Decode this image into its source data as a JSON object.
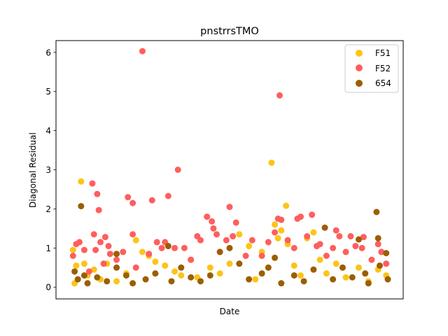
{
  "chart_data": {
    "type": "scatter",
    "title": "pnstrrsTMO",
    "xlabel": "Date",
    "ylabel": "Diagonal Residual",
    "ylim": [
      -0.3,
      6.3
    ],
    "yticks": [
      0,
      1,
      2,
      3,
      4,
      5,
      6
    ],
    "xticks": [],
    "grid": false,
    "legend_position": "top-right",
    "series": [
      {
        "name": "F51",
        "color": "#fcc417",
        "points": [
          [
            0.015,
            0.95
          ],
          [
            0.02,
            0.1
          ],
          [
            0.025,
            0.55
          ],
          [
            0.04,
            2.7
          ],
          [
            0.05,
            0.6
          ],
          [
            0.06,
            0.3
          ],
          [
            0.08,
            0.45
          ],
          [
            0.1,
            0.2
          ],
          [
            0.12,
            0.6
          ],
          [
            0.15,
            0.15
          ],
          [
            0.18,
            0.35
          ],
          [
            0.21,
            1.2
          ],
          [
            0.23,
            0.9
          ],
          [
            0.25,
            0.8
          ],
          [
            0.27,
            0.65
          ],
          [
            0.3,
            0.55
          ],
          [
            0.33,
            0.4
          ],
          [
            0.35,
            0.3
          ],
          [
            0.38,
            0.7
          ],
          [
            0.4,
            0.25
          ],
          [
            0.44,
            0.5
          ],
          [
            0.47,
            0.35
          ],
          [
            0.5,
            0.6
          ],
          [
            0.53,
            1.35
          ],
          [
            0.56,
            1.05
          ],
          [
            0.58,
            0.2
          ],
          [
            0.6,
            0.9
          ],
          [
            0.63,
            3.18
          ],
          [
            0.64,
            1.6
          ],
          [
            0.65,
            1.25
          ],
          [
            0.66,
            1.45
          ],
          [
            0.675,
            2.08
          ],
          [
            0.68,
            1.1
          ],
          [
            0.7,
            0.55
          ],
          [
            0.72,
            0.3
          ],
          [
            0.74,
            1.25
          ],
          [
            0.76,
            1.4
          ],
          [
            0.78,
            0.7
          ],
          [
            0.8,
            0.35
          ],
          [
            0.83,
            0.6
          ],
          [
            0.86,
            0.25
          ],
          [
            0.9,
            0.5
          ],
          [
            0.93,
            0.15
          ],
          [
            0.96,
            0.45
          ],
          [
            0.985,
            0.3
          ]
        ]
      },
      {
        "name": "F52",
        "color": "#ff5e5e",
        "points": [
          [
            0.015,
            0.8
          ],
          [
            0.025,
            1.1
          ],
          [
            0.035,
            1.15
          ],
          [
            0.05,
            0.95
          ],
          [
            0.065,
            0.4
          ],
          [
            0.075,
            2.65
          ],
          [
            0.08,
            1.35
          ],
          [
            0.085,
            0.95
          ],
          [
            0.09,
            2.38
          ],
          [
            0.095,
            1.97
          ],
          [
            0.1,
            1.15
          ],
          [
            0.11,
            0.6
          ],
          [
            0.115,
            1.28
          ],
          [
            0.125,
            1.05
          ],
          [
            0.13,
            0.85
          ],
          [
            0.15,
            0.7
          ],
          [
            0.17,
            0.9
          ],
          [
            0.185,
            2.3
          ],
          [
            0.2,
            2.15
          ],
          [
            0.2,
            1.35
          ],
          [
            0.21,
            0.5
          ],
          [
            0.23,
            6.03
          ],
          [
            0.25,
            0.85
          ],
          [
            0.26,
            2.22
          ],
          [
            0.275,
            1.15
          ],
          [
            0.29,
            1.0
          ],
          [
            0.3,
            1.15
          ],
          [
            0.31,
            2.33
          ],
          [
            0.33,
            1.0
          ],
          [
            0.34,
            3.0
          ],
          [
            0.36,
            1.0
          ],
          [
            0.38,
            0.7
          ],
          [
            0.4,
            1.3
          ],
          [
            0.41,
            1.2
          ],
          [
            0.43,
            1.8
          ],
          [
            0.445,
            1.68
          ],
          [
            0.45,
            1.5
          ],
          [
            0.46,
            1.35
          ],
          [
            0.47,
            0.9
          ],
          [
            0.49,
            1.2
          ],
          [
            0.5,
            2.05
          ],
          [
            0.51,
            1.3
          ],
          [
            0.52,
            1.65
          ],
          [
            0.55,
            0.8
          ],
          [
            0.57,
            1.2
          ],
          [
            0.6,
            0.8
          ],
          [
            0.62,
            1.15
          ],
          [
            0.64,
            1.4
          ],
          [
            0.65,
            1.75
          ],
          [
            0.655,
            4.9
          ],
          [
            0.66,
            1.72
          ],
          [
            0.68,
            1.2
          ],
          [
            0.7,
            1.0
          ],
          [
            0.71,
            1.75
          ],
          [
            0.72,
            1.8
          ],
          [
            0.74,
            1.3
          ],
          [
            0.755,
            1.85
          ],
          [
            0.77,
            1.05
          ],
          [
            0.78,
            1.1
          ],
          [
            0.8,
            0.8
          ],
          [
            0.82,
            1.0
          ],
          [
            0.83,
            1.45
          ],
          [
            0.84,
            1.3
          ],
          [
            0.86,
            0.9
          ],
          [
            0.875,
            1.3
          ],
          [
            0.89,
            1.05
          ],
          [
            0.91,
            1.0
          ],
          [
            0.915,
            1.28
          ],
          [
            0.94,
            0.7
          ],
          [
            0.96,
            1.1
          ],
          [
            0.97,
            0.9
          ],
          [
            0.985,
            0.6
          ]
        ]
      },
      {
        "name": "654",
        "color": "#9b5e00",
        "points": [
          [
            0.02,
            0.4
          ],
          [
            0.03,
            0.2
          ],
          [
            0.04,
            2.07
          ],
          [
            0.05,
            0.3
          ],
          [
            0.06,
            0.1
          ],
          [
            0.09,
            0.25
          ],
          [
            0.12,
            0.15
          ],
          [
            0.15,
            0.85
          ],
          [
            0.15,
            0.5
          ],
          [
            0.18,
            0.3
          ],
          [
            0.2,
            0.1
          ],
          [
            0.24,
            0.2
          ],
          [
            0.27,
            0.35
          ],
          [
            0.31,
            1.05
          ],
          [
            0.32,
            0.15
          ],
          [
            0.35,
            0.5
          ],
          [
            0.38,
            0.25
          ],
          [
            0.41,
            0.15
          ],
          [
            0.44,
            0.3
          ],
          [
            0.47,
            0.9
          ],
          [
            0.5,
            1.0
          ],
          [
            0.53,
            0.6
          ],
          [
            0.56,
            0.2
          ],
          [
            0.6,
            0.35
          ],
          [
            0.62,
            0.5
          ],
          [
            0.64,
            0.75
          ],
          [
            0.66,
            0.1
          ],
          [
            0.7,
            0.3
          ],
          [
            0.73,
            0.15
          ],
          [
            0.76,
            0.45
          ],
          [
            0.795,
            1.52
          ],
          [
            0.82,
            0.2
          ],
          [
            0.85,
            0.5
          ],
          [
            0.88,
            0.25
          ],
          [
            0.9,
            1.22
          ],
          [
            0.92,
            0.35
          ],
          [
            0.93,
            0.1
          ],
          [
            0.955,
            1.92
          ],
          [
            0.96,
            1.25
          ],
          [
            0.965,
            0.55
          ],
          [
            0.985,
            0.87
          ],
          [
            0.99,
            0.2
          ]
        ]
      }
    ]
  }
}
